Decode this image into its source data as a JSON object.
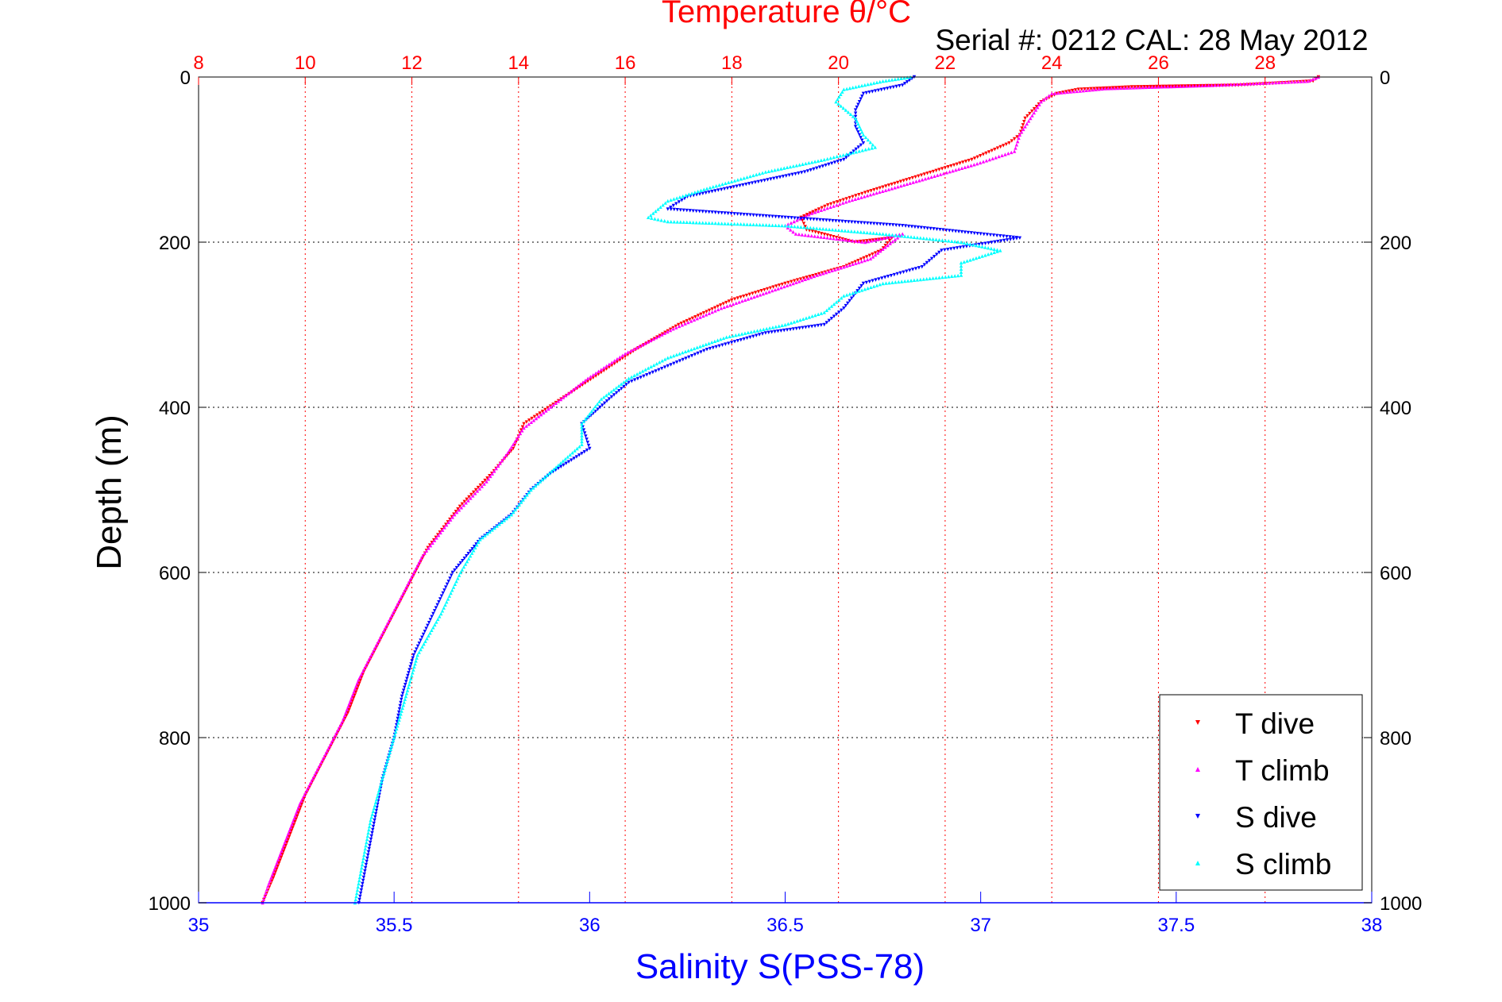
{
  "chart_data": {
    "type": "scatter",
    "title": "Temperature θ/°C",
    "subtitle": "Serial #: 0212  CAL: 28 May 2012",
    "ylabel": "Depth (m)",
    "xlabel": "Salinity S(PSS-78)",
    "ylim": [
      1000,
      0
    ],
    "temp_axis": {
      "lim": [
        8,
        30
      ],
      "ticks": [
        "8",
        "10",
        "12",
        "14",
        "16",
        "18",
        "20",
        "22",
        "24",
        "26",
        "28"
      ],
      "color": "#ff0000"
    },
    "sal_axis": {
      "lim": [
        35,
        38
      ],
      "ticks": [
        "35",
        "35.5",
        "36",
        "36.5",
        "37",
        "37.5",
        "38"
      ],
      "color": "#0000ff"
    },
    "depth_ticks": [
      "0",
      "200",
      "400",
      "600",
      "800",
      "1000"
    ],
    "grid": true,
    "legend_position": "bottom-right",
    "series": [
      {
        "name": "T dive",
        "axis": "temp",
        "color": "#ff0000",
        "marker": "triangle-down",
        "points": [
          [
            29.0,
            0
          ],
          [
            28.9,
            5
          ],
          [
            27.5,
            10
          ],
          [
            25.5,
            12
          ],
          [
            24.5,
            15
          ],
          [
            24.1,
            20
          ],
          [
            23.8,
            30
          ],
          [
            23.5,
            50
          ],
          [
            23.4,
            70
          ],
          [
            23.2,
            80
          ],
          [
            22.5,
            100
          ],
          [
            21.5,
            120
          ],
          [
            20.5,
            140
          ],
          [
            19.8,
            155
          ],
          [
            19.3,
            170
          ],
          [
            19.4,
            185
          ],
          [
            20.3,
            200
          ],
          [
            21.0,
            195
          ],
          [
            20.8,
            210
          ],
          [
            20.1,
            230
          ],
          [
            19.0,
            250
          ],
          [
            18.0,
            270
          ],
          [
            17.0,
            300
          ],
          [
            16.2,
            330
          ],
          [
            15.5,
            360
          ],
          [
            14.8,
            390
          ],
          [
            14.1,
            420
          ],
          [
            13.9,
            450
          ],
          [
            13.5,
            480
          ],
          [
            12.9,
            520
          ],
          [
            12.3,
            570
          ],
          [
            11.9,
            620
          ],
          [
            11.5,
            670
          ],
          [
            11.1,
            720
          ],
          [
            10.8,
            770
          ],
          [
            10.4,
            820
          ],
          [
            10.0,
            870
          ],
          [
            9.7,
            920
          ],
          [
            9.4,
            970
          ],
          [
            9.2,
            1000
          ]
        ]
      },
      {
        "name": "T climb",
        "axis": "temp",
        "color": "#ff00ff",
        "marker": "triangle-up",
        "points": [
          [
            29.0,
            0
          ],
          [
            28.8,
            5
          ],
          [
            27.0,
            10
          ],
          [
            25.0,
            14
          ],
          [
            24.0,
            20
          ],
          [
            23.8,
            30
          ],
          [
            23.6,
            50
          ],
          [
            23.4,
            70
          ],
          [
            23.3,
            90
          ],
          [
            22.6,
            105
          ],
          [
            21.8,
            120
          ],
          [
            21.0,
            135
          ],
          [
            20.2,
            150
          ],
          [
            19.5,
            165
          ],
          [
            19.0,
            180
          ],
          [
            19.2,
            190
          ],
          [
            20.5,
            200
          ],
          [
            21.2,
            190
          ],
          [
            20.6,
            220
          ],
          [
            19.6,
            240
          ],
          [
            18.7,
            260
          ],
          [
            17.8,
            280
          ],
          [
            16.9,
            305
          ],
          [
            16.0,
            335
          ],
          [
            15.3,
            365
          ],
          [
            14.7,
            395
          ],
          [
            14.1,
            425
          ],
          [
            13.8,
            455
          ],
          [
            13.4,
            490
          ],
          [
            12.8,
            530
          ],
          [
            12.2,
            580
          ],
          [
            11.8,
            630
          ],
          [
            11.4,
            680
          ],
          [
            11.0,
            730
          ],
          [
            10.7,
            780
          ],
          [
            10.3,
            830
          ],
          [
            9.9,
            880
          ],
          [
            9.6,
            930
          ],
          [
            9.3,
            980
          ],
          [
            9.2,
            1000
          ]
        ]
      },
      {
        "name": "S dive",
        "axis": "sal",
        "color": "#0000ff",
        "marker": "triangle-down",
        "points": [
          [
            36.83,
            0
          ],
          [
            36.8,
            10
          ],
          [
            36.7,
            20
          ],
          [
            36.68,
            40
          ],
          [
            36.68,
            60
          ],
          [
            36.7,
            80
          ],
          [
            36.65,
            100
          ],
          [
            36.55,
            115
          ],
          [
            36.4,
            130
          ],
          [
            36.25,
            145
          ],
          [
            36.2,
            160
          ],
          [
            36.5,
            170
          ],
          [
            36.8,
            180
          ],
          [
            37.0,
            190
          ],
          [
            37.1,
            195
          ],
          [
            36.9,
            210
          ],
          [
            36.85,
            230
          ],
          [
            36.7,
            250
          ],
          [
            36.65,
            280
          ],
          [
            36.6,
            300
          ],
          [
            36.45,
            310
          ],
          [
            36.3,
            330
          ],
          [
            36.2,
            350
          ],
          [
            36.1,
            370
          ],
          [
            36.05,
            390
          ],
          [
            35.98,
            420
          ],
          [
            36.0,
            450
          ],
          [
            35.9,
            480
          ],
          [
            35.85,
            500
          ],
          [
            35.8,
            530
          ],
          [
            35.72,
            560
          ],
          [
            35.65,
            600
          ],
          [
            35.6,
            650
          ],
          [
            35.55,
            700
          ],
          [
            35.52,
            750
          ],
          [
            35.5,
            800
          ],
          [
            35.47,
            850
          ],
          [
            35.45,
            900
          ],
          [
            35.43,
            950
          ],
          [
            35.41,
            1000
          ]
        ]
      },
      {
        "name": "S climb",
        "axis": "sal",
        "color": "#00ffff",
        "marker": "triangle-up",
        "points": [
          [
            36.82,
            0
          ],
          [
            36.75,
            5
          ],
          [
            36.65,
            15
          ],
          [
            36.63,
            30
          ],
          [
            36.68,
            50
          ],
          [
            36.7,
            70
          ],
          [
            36.73,
            85
          ],
          [
            36.6,
            100
          ],
          [
            36.45,
            115
          ],
          [
            36.3,
            135
          ],
          [
            36.2,
            150
          ],
          [
            36.15,
            170
          ],
          [
            36.2,
            175
          ],
          [
            36.5,
            180
          ],
          [
            36.75,
            190
          ],
          [
            36.95,
            200
          ],
          [
            37.05,
            210
          ],
          [
            36.95,
            225
          ],
          [
            36.95,
            240
          ],
          [
            36.75,
            250
          ],
          [
            36.65,
            265
          ],
          [
            36.6,
            285
          ],
          [
            36.5,
            300
          ],
          [
            36.35,
            315
          ],
          [
            36.2,
            340
          ],
          [
            36.1,
            365
          ],
          [
            36.03,
            390
          ],
          [
            35.98,
            420
          ],
          [
            35.98,
            445
          ],
          [
            35.92,
            470
          ],
          [
            35.85,
            500
          ],
          [
            35.8,
            530
          ],
          [
            35.72,
            560
          ],
          [
            35.67,
            600
          ],
          [
            35.62,
            650
          ],
          [
            35.56,
            700
          ],
          [
            35.53,
            750
          ],
          [
            35.5,
            800
          ],
          [
            35.47,
            850
          ],
          [
            35.44,
            900
          ],
          [
            35.42,
            950
          ],
          [
            35.4,
            1000
          ]
        ]
      }
    ]
  }
}
